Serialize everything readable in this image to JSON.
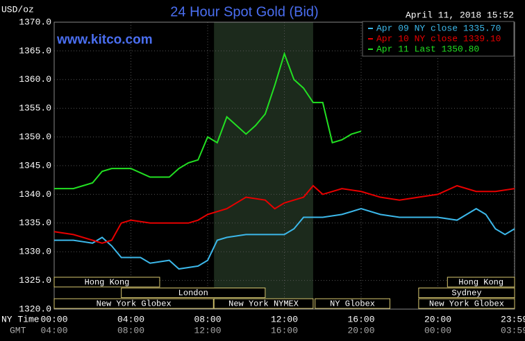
{
  "chart_data": {
    "type": "line",
    "title": "24 Hour Spot Gold (Bid)",
    "unit_label": "USD/oz",
    "timestamp": "April 11, 2018 15:52",
    "website": "www.kitco.com",
    "x_row_labels": [
      "NY Time",
      "GMT"
    ],
    "xlim": [
      0,
      24
    ],
    "xticks": [
      {
        "value": 0,
        "label": "00:00"
      },
      {
        "value": 4,
        "label": "04:00"
      },
      {
        "value": 8,
        "label": "08:00"
      },
      {
        "value": 12,
        "label": "12:00"
      },
      {
        "value": 16,
        "label": "16:00"
      },
      {
        "value": 20,
        "label": "20:00"
      },
      {
        "value": 23.983,
        "label": "23:59"
      }
    ],
    "xticks_gmt": [
      "04:00",
      "08:00",
      "12:00",
      "16:00",
      "20:00",
      "00:00",
      "03:59"
    ],
    "ylim": [
      1320,
      1370
    ],
    "yticks": [
      {
        "value": 1320,
        "label": "1320.0"
      },
      {
        "value": 1325,
        "label": "1325.0"
      },
      {
        "value": 1330,
        "label": "1330.0"
      },
      {
        "value": 1335,
        "label": "1335.0"
      },
      {
        "value": 1340,
        "label": "1340.0"
      },
      {
        "value": 1345,
        "label": "1345.0"
      },
      {
        "value": 1350,
        "label": "1350.0"
      },
      {
        "value": 1355,
        "label": "1355.0"
      },
      {
        "value": 1360,
        "label": "1360.0"
      },
      {
        "value": 1365,
        "label": "1365.0"
      },
      {
        "value": 1370,
        "label": "1370.0"
      }
    ],
    "grid": true,
    "highlight": [
      8.333,
      13.5
    ],
    "sessions": [
      {
        "label": "Hong Kong",
        "row": 0,
        "start": 0,
        "end": 5.5
      },
      {
        "label": "Hong Kong",
        "row": 0,
        "start": 20.5,
        "end": 24
      },
      {
        "label": "London",
        "row": 1,
        "start": 3.5,
        "end": 11
      },
      {
        "label": "Sydney",
        "row": 1,
        "start": 19,
        "end": 24
      },
      {
        "label": "New York Globex",
        "row": 2,
        "start": 0,
        "end": 8.3
      },
      {
        "label": "New York NYMEX",
        "row": 2,
        "start": 8.333,
        "end": 13.5
      },
      {
        "label": "NY Globex",
        "row": 2,
        "start": 13.6,
        "end": 17.5
      },
      {
        "label": "New York Globex",
        "row": 2,
        "start": 19,
        "end": 24
      }
    ],
    "series": [
      {
        "name": "Apr 09 NY close 1335.70",
        "color": "#3cb8ea",
        "x": [
          0,
          1,
          2,
          2.5,
          3,
          3.5,
          4.5,
          5,
          6,
          6.5,
          7.5,
          8,
          8.5,
          9,
          10,
          11,
          12,
          12.5,
          13,
          14,
          15,
          16,
          17,
          18,
          19,
          20,
          21,
          22,
          22.5,
          23,
          23.5,
          24
        ],
        "values": [
          1332,
          1332,
          1331.5,
          1332.5,
          1331,
          1329,
          1329,
          1328,
          1328.5,
          1327,
          1327.5,
          1328.5,
          1332,
          1332.5,
          1333,
          1333,
          1333,
          1334,
          1336,
          1336,
          1336.5,
          1337.5,
          1336.5,
          1336,
          1336,
          1336,
          1335.5,
          1337.5,
          1336.5,
          1334,
          1333,
          1334
        ]
      },
      {
        "name": "Apr 10 NY close 1339.10",
        "color": "#e80000",
        "x": [
          0,
          1,
          2,
          2.5,
          3,
          3.5,
          4,
          5,
          6,
          7,
          7.5,
          8,
          9,
          9.5,
          10,
          11,
          11.5,
          12,
          13,
          13.5,
          14,
          15,
          16,
          17,
          18,
          19,
          20,
          21,
          22,
          23,
          24
        ],
        "values": [
          1333.5,
          1333,
          1332,
          1331.5,
          1332,
          1335,
          1335.5,
          1335,
          1335,
          1335,
          1335.5,
          1336.5,
          1337.5,
          1338.5,
          1339.5,
          1339,
          1337.5,
          1338.5,
          1339.5,
          1341.5,
          1340,
          1341,
          1340.5,
          1339.5,
          1339,
          1339.5,
          1340,
          1341.5,
          1340.5,
          1340.5,
          1341
        ]
      },
      {
        "name": "Apr 11 Last 1350.80",
        "color": "#22e022",
        "x": [
          0,
          1,
          1.5,
          2,
          2.5,
          3,
          4,
          5,
          6,
          6.5,
          7,
          7.5,
          8,
          8.5,
          9,
          9.5,
          10,
          10.5,
          11,
          11.5,
          12,
          12.5,
          13,
          13.5,
          14,
          14.5,
          15,
          15.5,
          16
        ],
        "values": [
          1341,
          1341,
          1341.5,
          1342,
          1344,
          1344.5,
          1344.5,
          1343,
          1343,
          1344.5,
          1345.5,
          1346,
          1350,
          1349,
          1353.5,
          1352,
          1350.5,
          1352,
          1354,
          1359,
          1364.5,
          1360,
          1358.5,
          1356,
          1356,
          1349,
          1349.5,
          1350.5,
          1351
        ]
      }
    ]
  }
}
